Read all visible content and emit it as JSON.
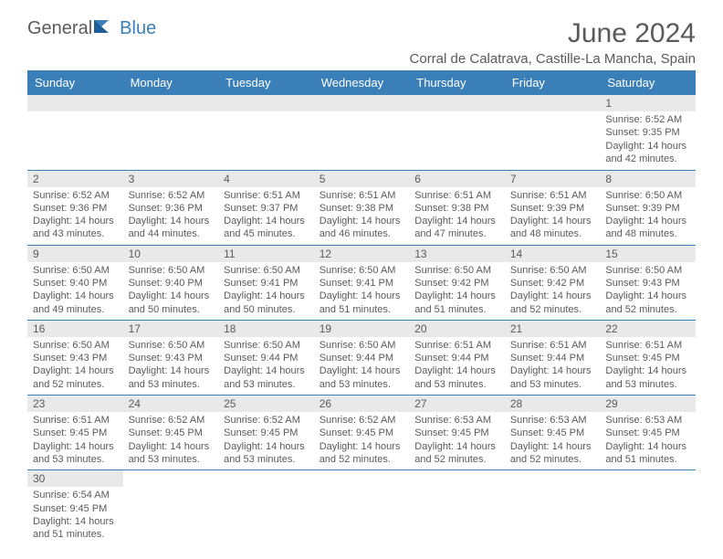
{
  "brand": {
    "part1": "General",
    "part2": "Blue",
    "text_color": "#5a5a5a",
    "accent_color": "#3a7fb8"
  },
  "title": "June 2024",
  "location": "Corral de Calatrava, Castille-La Mancha, Spain",
  "weekdays": [
    "Sunday",
    "Monday",
    "Tuesday",
    "Wednesday",
    "Thursday",
    "Friday",
    "Saturday"
  ],
  "style": {
    "header_bg": "#3a7fb8",
    "header_text": "#ffffff",
    "daynum_bg": "#e9e9e9",
    "text_color": "#5a5a5a",
    "cell_border": "#3a7fb8",
    "body_font_size": 11,
    "header_font_size": 13,
    "title_font_size": 30
  },
  "weeks": [
    [
      null,
      null,
      null,
      null,
      null,
      null,
      {
        "n": "1",
        "sunrise": "6:52 AM",
        "sunset": "9:35 PM",
        "daylight": "14 hours and 42 minutes."
      }
    ],
    [
      {
        "n": "2",
        "sunrise": "6:52 AM",
        "sunset": "9:36 PM",
        "daylight": "14 hours and 43 minutes."
      },
      {
        "n": "3",
        "sunrise": "6:52 AM",
        "sunset": "9:36 PM",
        "daylight": "14 hours and 44 minutes."
      },
      {
        "n": "4",
        "sunrise": "6:51 AM",
        "sunset": "9:37 PM",
        "daylight": "14 hours and 45 minutes."
      },
      {
        "n": "5",
        "sunrise": "6:51 AM",
        "sunset": "9:38 PM",
        "daylight": "14 hours and 46 minutes."
      },
      {
        "n": "6",
        "sunrise": "6:51 AM",
        "sunset": "9:38 PM",
        "daylight": "14 hours and 47 minutes."
      },
      {
        "n": "7",
        "sunrise": "6:51 AM",
        "sunset": "9:39 PM",
        "daylight": "14 hours and 48 minutes."
      },
      {
        "n": "8",
        "sunrise": "6:50 AM",
        "sunset": "9:39 PM",
        "daylight": "14 hours and 48 minutes."
      }
    ],
    [
      {
        "n": "9",
        "sunrise": "6:50 AM",
        "sunset": "9:40 PM",
        "daylight": "14 hours and 49 minutes."
      },
      {
        "n": "10",
        "sunrise": "6:50 AM",
        "sunset": "9:40 PM",
        "daylight": "14 hours and 50 minutes."
      },
      {
        "n": "11",
        "sunrise": "6:50 AM",
        "sunset": "9:41 PM",
        "daylight": "14 hours and 50 minutes."
      },
      {
        "n": "12",
        "sunrise": "6:50 AM",
        "sunset": "9:41 PM",
        "daylight": "14 hours and 51 minutes."
      },
      {
        "n": "13",
        "sunrise": "6:50 AM",
        "sunset": "9:42 PM",
        "daylight": "14 hours and 51 minutes."
      },
      {
        "n": "14",
        "sunrise": "6:50 AM",
        "sunset": "9:42 PM",
        "daylight": "14 hours and 52 minutes."
      },
      {
        "n": "15",
        "sunrise": "6:50 AM",
        "sunset": "9:43 PM",
        "daylight": "14 hours and 52 minutes."
      }
    ],
    [
      {
        "n": "16",
        "sunrise": "6:50 AM",
        "sunset": "9:43 PM",
        "daylight": "14 hours and 52 minutes."
      },
      {
        "n": "17",
        "sunrise": "6:50 AM",
        "sunset": "9:43 PM",
        "daylight": "14 hours and 53 minutes."
      },
      {
        "n": "18",
        "sunrise": "6:50 AM",
        "sunset": "9:44 PM",
        "daylight": "14 hours and 53 minutes."
      },
      {
        "n": "19",
        "sunrise": "6:50 AM",
        "sunset": "9:44 PM",
        "daylight": "14 hours and 53 minutes."
      },
      {
        "n": "20",
        "sunrise": "6:51 AM",
        "sunset": "9:44 PM",
        "daylight": "14 hours and 53 minutes."
      },
      {
        "n": "21",
        "sunrise": "6:51 AM",
        "sunset": "9:44 PM",
        "daylight": "14 hours and 53 minutes."
      },
      {
        "n": "22",
        "sunrise": "6:51 AM",
        "sunset": "9:45 PM",
        "daylight": "14 hours and 53 minutes."
      }
    ],
    [
      {
        "n": "23",
        "sunrise": "6:51 AM",
        "sunset": "9:45 PM",
        "daylight": "14 hours and 53 minutes."
      },
      {
        "n": "24",
        "sunrise": "6:52 AM",
        "sunset": "9:45 PM",
        "daylight": "14 hours and 53 minutes."
      },
      {
        "n": "25",
        "sunrise": "6:52 AM",
        "sunset": "9:45 PM",
        "daylight": "14 hours and 53 minutes."
      },
      {
        "n": "26",
        "sunrise": "6:52 AM",
        "sunset": "9:45 PM",
        "daylight": "14 hours and 52 minutes."
      },
      {
        "n": "27",
        "sunrise": "6:53 AM",
        "sunset": "9:45 PM",
        "daylight": "14 hours and 52 minutes."
      },
      {
        "n": "28",
        "sunrise": "6:53 AM",
        "sunset": "9:45 PM",
        "daylight": "14 hours and 52 minutes."
      },
      {
        "n": "29",
        "sunrise": "6:53 AM",
        "sunset": "9:45 PM",
        "daylight": "14 hours and 51 minutes."
      }
    ],
    [
      {
        "n": "30",
        "sunrise": "6:54 AM",
        "sunset": "9:45 PM",
        "daylight": "14 hours and 51 minutes."
      },
      null,
      null,
      null,
      null,
      null,
      null
    ]
  ],
  "labels": {
    "sunrise": "Sunrise:",
    "sunset": "Sunset:",
    "daylight": "Daylight:"
  }
}
